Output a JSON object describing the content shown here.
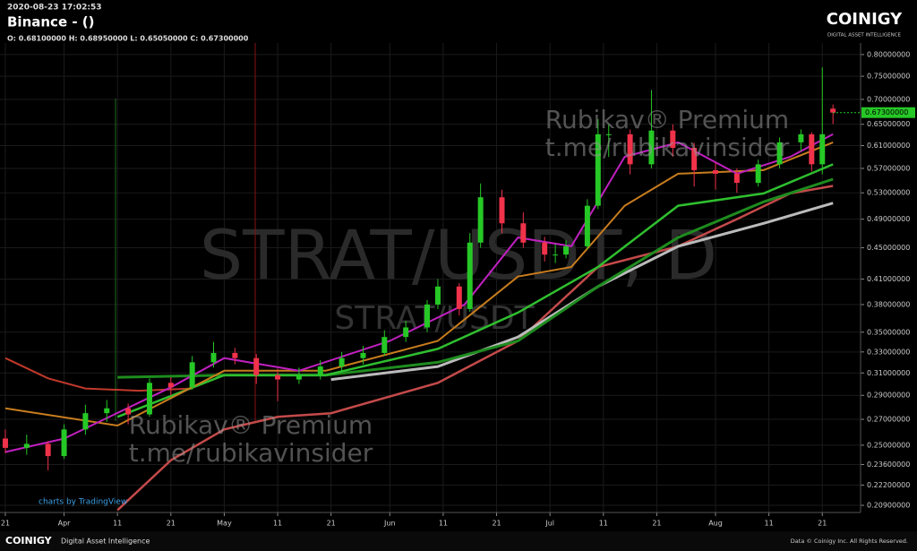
{
  "chart_data": {
    "type": "candlestick",
    "timestamp": "2020-08-23 17:02:53",
    "title": "Binance -  ()",
    "ohlc_label": "O: 0.68100000 H: 0.68950000 L: 0.65050000 C: 0.67300000",
    "log_scale": true,
    "grid": true,
    "up_color": "#26c826",
    "down_color": "#f0324a",
    "ylim": [
      0.2046,
      0.828
    ],
    "yticks": [
      {
        "value": 0.8,
        "label": "0.80000000"
      },
      {
        "value": 0.75,
        "label": "0.75000000"
      },
      {
        "value": 0.7,
        "label": "0.70000000"
      },
      {
        "value": 0.65,
        "label": "0.65000000"
      },
      {
        "value": 0.61,
        "label": "0.61000000"
      },
      {
        "value": 0.57,
        "label": "0.57000000"
      },
      {
        "value": 0.53,
        "label": "0.53000000"
      },
      {
        "value": 0.49,
        "label": "0.49000000"
      },
      {
        "value": 0.45,
        "label": "0.45000000"
      },
      {
        "value": 0.41,
        "label": "0.41000000"
      },
      {
        "value": 0.38,
        "label": "0.38000000"
      },
      {
        "value": 0.35,
        "label": "0.35000000"
      },
      {
        "value": 0.33,
        "label": "0.33000000"
      },
      {
        "value": 0.31,
        "label": "0.31000000"
      },
      {
        "value": 0.29,
        "label": "0.29000000"
      },
      {
        "value": 0.27,
        "label": "0.27000000"
      },
      {
        "value": 0.25,
        "label": "0.25000000"
      },
      {
        "value": 0.236,
        "label": "0.23600000"
      },
      {
        "value": 0.222,
        "label": "0.22200000"
      },
      {
        "value": 0.209,
        "label": "0.20900000"
      }
    ],
    "xlim": [
      "03-20",
      "08-28"
    ],
    "xticks": [
      {
        "value": "03-21",
        "label": "21"
      },
      {
        "value": "04-01",
        "label": "Apr"
      },
      {
        "value": "04-11",
        "label": "11"
      },
      {
        "value": "04-21",
        "label": "21"
      },
      {
        "value": "05-01",
        "label": "May"
      },
      {
        "value": "05-11",
        "label": "11"
      },
      {
        "value": "05-21",
        "label": "21"
      },
      {
        "value": "06-01",
        "label": "Jun"
      },
      {
        "value": "06-11",
        "label": "11"
      },
      {
        "value": "06-21",
        "label": "21"
      },
      {
        "value": "07-01",
        "label": "Jul"
      },
      {
        "value": "07-11",
        "label": "11"
      },
      {
        "value": "07-21",
        "label": "21"
      },
      {
        "value": "08-01",
        "label": "Aug"
      },
      {
        "value": "08-11",
        "label": "11"
      },
      {
        "value": "08-21",
        "label": "21"
      }
    ],
    "last_price": {
      "value": 0.673,
      "label": "0.67300000"
    },
    "x": [
      "03-21",
      "03-25",
      "03-29",
      "04-01",
      "04-05",
      "04-09",
      "04-13",
      "04-17",
      "04-21",
      "04-25",
      "04-29",
      "05-03",
      "05-07",
      "05-11",
      "05-15",
      "05-19",
      "05-23",
      "05-27",
      "05-31",
      "06-04",
      "06-08",
      "06-10",
      "06-14",
      "06-16",
      "06-18",
      "06-22",
      "06-26",
      "06-30",
      "07-02",
      "07-04",
      "07-08",
      "07-10",
      "07-12",
      "07-16",
      "07-20",
      "07-24",
      "07-28",
      "08-01",
      "08-05",
      "08-09",
      "08-13",
      "08-17",
      "08-19",
      "08-21",
      "08-23"
    ],
    "open": [
      0.255,
      0.248,
      0.251,
      0.242,
      0.262,
      0.275,
      0.279,
      0.274,
      0.301,
      0.297,
      0.32,
      0.329,
      0.324,
      0.308,
      0.304,
      0.308,
      0.316,
      0.324,
      0.329,
      0.345,
      0.355,
      0.38,
      0.401,
      0.375,
      0.457,
      0.523,
      0.484,
      0.457,
      0.441,
      0.441,
      0.452,
      0.51,
      0.631,
      0.631,
      0.577,
      0.638,
      0.606,
      0.567,
      0.561,
      0.546,
      0.577,
      0.616,
      0.631,
      0.577,
      0.681
    ],
    "high": [
      0.262,
      0.258,
      0.253,
      0.266,
      0.282,
      0.286,
      0.283,
      0.305,
      0.306,
      0.326,
      0.34,
      0.334,
      0.328,
      0.314,
      0.315,
      0.322,
      0.33,
      0.336,
      0.352,
      0.362,
      0.385,
      0.41,
      0.405,
      0.47,
      0.545,
      0.535,
      0.5,
      0.465,
      0.455,
      0.46,
      0.52,
      0.66,
      0.65,
      0.64,
      0.72,
      0.65,
      0.615,
      0.58,
      0.57,
      0.585,
      0.625,
      0.64,
      0.635,
      0.77,
      0.6895
    ],
    "low": [
      0.244,
      0.243,
      0.232,
      0.24,
      0.258,
      0.268,
      0.266,
      0.272,
      0.29,
      0.295,
      0.315,
      0.318,
      0.3,
      0.285,
      0.3,
      0.304,
      0.312,
      0.318,
      0.326,
      0.34,
      0.35,
      0.375,
      0.368,
      0.372,
      0.45,
      0.47,
      0.45,
      0.432,
      0.43,
      0.436,
      0.448,
      0.505,
      0.59,
      0.56,
      0.57,
      0.59,
      0.54,
      0.535,
      0.53,
      0.54,
      0.57,
      0.6,
      0.565,
      0.56,
      0.6505
    ],
    "close": [
      0.248,
      0.251,
      0.242,
      0.262,
      0.275,
      0.279,
      0.274,
      0.301,
      0.297,
      0.32,
      0.329,
      0.324,
      0.308,
      0.304,
      0.308,
      0.316,
      0.324,
      0.329,
      0.345,
      0.355,
      0.38,
      0.401,
      0.375,
      0.457,
      0.523,
      0.484,
      0.457,
      0.441,
      0.441,
      0.452,
      0.51,
      0.631,
      0.631,
      0.577,
      0.638,
      0.606,
      0.567,
      0.561,
      0.546,
      0.577,
      0.616,
      0.631,
      0.577,
      0.631,
      0.673
    ],
    "lines": [
      {
        "color": "#c0392b",
        "width": 2,
        "x": [
          "03-21",
          "03-29",
          "04-05",
          "04-15",
          "04-25"
        ],
        "values": [
          0.324,
          0.305,
          0.296,
          0.294,
          0.296
        ]
      },
      {
        "color": "#c44a4a",
        "width": 2.5,
        "x": [
          "04-11",
          "04-21",
          "05-01",
          "05-11",
          "05-21",
          "06-10",
          "06-25",
          "07-10",
          "07-25",
          "08-05",
          "08-15",
          "08-23"
        ],
        "values": [
          0.206,
          0.239,
          0.262,
          0.272,
          0.275,
          0.301,
          0.341,
          0.425,
          0.452,
          0.49,
          0.529,
          0.541
        ]
      },
      {
        "color": "#bbbbbb",
        "width": 3,
        "x": [
          "05-21",
          "06-10",
          "06-25",
          "07-10",
          "07-25",
          "08-10",
          "08-23"
        ],
        "values": [
          0.304,
          0.316,
          0.345,
          0.401,
          0.452,
          0.484,
          0.514
        ]
      },
      {
        "color": "#1e8c1e",
        "width": 3,
        "x": [
          "04-11",
          "05-01",
          "05-20",
          "06-10",
          "06-25",
          "07-10",
          "07-25",
          "08-10",
          "08-23"
        ],
        "values": [
          0.306,
          0.308,
          0.308,
          0.32,
          0.341,
          0.401,
          0.464,
          0.516,
          0.552
        ]
      },
      {
        "color": "#2fbf2f",
        "width": 2.5,
        "x": [
          "04-11",
          "05-01",
          "05-20",
          "06-10",
          "06-25",
          "07-10",
          "07-25",
          "08-10",
          "08-23"
        ],
        "values": [
          0.272,
          0.308,
          0.308,
          0.333,
          0.371,
          0.425,
          0.51,
          0.529,
          0.577
        ]
      },
      {
        "color": "#c87d1e",
        "width": 2,
        "x": [
          "03-21",
          "04-11",
          "05-01",
          "05-20",
          "06-10",
          "06-25",
          "07-05",
          "07-15",
          "07-25",
          "08-10",
          "08-23"
        ],
        "values": [
          0.279,
          0.265,
          0.312,
          0.312,
          0.341,
          0.413,
          0.425,
          0.51,
          0.561,
          0.567,
          0.616
        ]
      },
      {
        "color": "#c020c0",
        "width": 2,
        "x": [
          "03-21",
          "04-01",
          "04-21",
          "05-01",
          "05-15",
          "06-01",
          "06-15",
          "06-25",
          "07-05",
          "07-15",
          "07-25",
          "08-05",
          "08-15",
          "08-23"
        ],
        "values": [
          0.245,
          0.255,
          0.297,
          0.324,
          0.312,
          0.341,
          0.38,
          0.464,
          0.452,
          0.59,
          0.616,
          0.561,
          0.59,
          0.631
        ]
      }
    ]
  },
  "watermarks": {
    "symbol": "STRAT/USDT, D",
    "pair": "STRAT/USDT",
    "brand": "Rubikav® Premium",
    "channel": "t.me/rubikavinsider"
  },
  "logo": {
    "name": "COINIGY",
    "tagline": "DIGITAL ASSET INTELLIGENCE"
  },
  "footer": {
    "name": "COINIGY",
    "tagline": "Digital Asset Intelligence",
    "credit": "Data © Coinigy Inc. All Rights Reserved.",
    "tradingview": "charts by TradingView"
  }
}
